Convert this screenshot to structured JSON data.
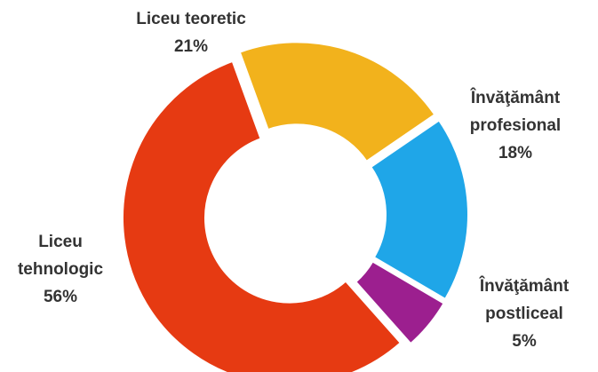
{
  "chart_data": {
    "type": "donut",
    "categories": [
      "Liceu teoretic",
      "Învăţământ profesional",
      "Învăţământ postliceal",
      "Liceu tehnologic"
    ],
    "values": [
      21,
      18,
      5,
      56
    ],
    "value_labels": [
      "21%",
      "18%",
      "5%",
      "56%"
    ],
    "colors": [
      "#f2b21c",
      "#1fa6e8",
      "#9c1f8f",
      "#e63a12"
    ]
  }
}
